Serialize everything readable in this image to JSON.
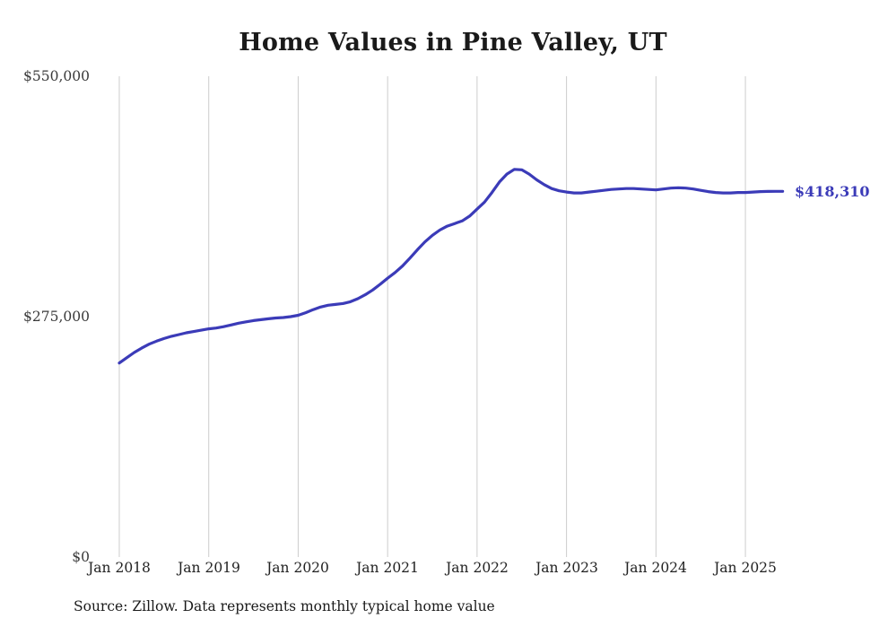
{
  "page": {
    "title": "Home Values in Pine Valley, UT",
    "source_note": "Source: Zillow. Data represents monthly typical home value"
  },
  "chart_data": {
    "type": "line",
    "title": "Home Values in Pine Valley, UT",
    "series_name": "Monthly typical home value",
    "ylim": [
      0,
      550000
    ],
    "y_ticks": [
      550000,
      275000,
      0
    ],
    "y_tick_labels": [
      "$550,000",
      "$275,000",
      "$0"
    ],
    "x_tick_labels": [
      "Jan 2018",
      "Jan 2019",
      "Jan 2020",
      "Jan 2021",
      "Jan 2022",
      "Jan 2023",
      "Jan 2024",
      "Jan 2025"
    ],
    "grid": "vertical-only",
    "legend": "none",
    "line_color": "#3b3bb8",
    "gridline_color": "#cccccc",
    "end_value": 418310,
    "end_value_label": "$418,310",
    "x": [
      "2018-01",
      "2018-02",
      "2018-03",
      "2018-04",
      "2018-05",
      "2018-06",
      "2018-07",
      "2018-08",
      "2018-09",
      "2018-10",
      "2018-11",
      "2018-12",
      "2019-01",
      "2019-02",
      "2019-03",
      "2019-04",
      "2019-05",
      "2019-06",
      "2019-07",
      "2019-08",
      "2019-09",
      "2019-10",
      "2019-11",
      "2019-12",
      "2020-01",
      "2020-02",
      "2020-03",
      "2020-04",
      "2020-05",
      "2020-06",
      "2020-07",
      "2020-08",
      "2020-09",
      "2020-10",
      "2020-11",
      "2020-12",
      "2021-01",
      "2021-02",
      "2021-03",
      "2021-04",
      "2021-05",
      "2021-06",
      "2021-07",
      "2021-08",
      "2021-09",
      "2021-10",
      "2021-11",
      "2021-12",
      "2022-01",
      "2022-02",
      "2022-03",
      "2022-04",
      "2022-05",
      "2022-06",
      "2022-07",
      "2022-08",
      "2022-09",
      "2022-10",
      "2022-11",
      "2022-12",
      "2023-01",
      "2023-02",
      "2023-03",
      "2023-04",
      "2023-05",
      "2023-06",
      "2023-07",
      "2023-08",
      "2023-09",
      "2023-10",
      "2023-11",
      "2023-12",
      "2024-01",
      "2024-02",
      "2024-03",
      "2024-04",
      "2024-05",
      "2024-06",
      "2024-07",
      "2024-08",
      "2024-09",
      "2024-10",
      "2024-11",
      "2024-12",
      "2025-01",
      "2025-02",
      "2025-03",
      "2025-04",
      "2025-05",
      "2025-06"
    ],
    "values": [
      222000,
      228000,
      234000,
      239000,
      243500,
      247000,
      250000,
      252500,
      254500,
      256500,
      258000,
      259500,
      261000,
      262000,
      263500,
      265500,
      267500,
      269000,
      270500,
      271500,
      272500,
      273500,
      274000,
      275000,
      276500,
      279500,
      283000,
      286000,
      288000,
      289000,
      290000,
      292000,
      295500,
      300000,
      305500,
      312000,
      319000,
      325500,
      333000,
      342000,
      351500,
      360500,
      368000,
      374000,
      378500,
      381500,
      384500,
      390000,
      398000,
      406000,
      417000,
      429000,
      438000,
      443500,
      443000,
      438000,
      431500,
      426000,
      421500,
      419000,
      417500,
      416500,
      416500,
      417500,
      418500,
      419500,
      420500,
      421000,
      421500,
      421500,
      421000,
      420500,
      420000,
      421000,
      422000,
      422500,
      422000,
      421000,
      419500,
      418000,
      417000,
      416500,
      416500,
      417000,
      417000,
      417500,
      418000,
      418200,
      418300,
      418310
    ]
  }
}
